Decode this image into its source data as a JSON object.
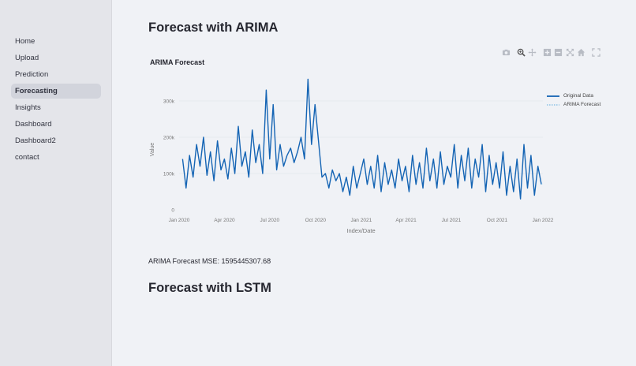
{
  "sidebar": {
    "items": [
      {
        "label": "Home",
        "active": false
      },
      {
        "label": "Upload",
        "active": false
      },
      {
        "label": "Prediction",
        "active": false
      },
      {
        "label": "Forecasting",
        "active": true
      },
      {
        "label": "Insights",
        "active": false
      },
      {
        "label": "Dashboard",
        "active": false
      },
      {
        "label": "Dashboard2",
        "active": false
      },
      {
        "label": "contact",
        "active": false
      }
    ]
  },
  "main": {
    "arima_heading": "Forecast with ARIMA",
    "mse_text": "ARIMA Forecast MSE: 1595445307.68",
    "lstm_heading": "Forecast with LSTM"
  },
  "toolbar": {
    "icons": [
      "camera-icon",
      "zoom-icon",
      "pan-icon",
      "zoom-in-icon",
      "zoom-out-icon",
      "autoscale-icon",
      "reset-axes-icon",
      "fullscreen-icon"
    ]
  },
  "colors": {
    "original": "#1464b4",
    "forecast": "#8ec3e6",
    "grid": "#e3e6ec"
  },
  "chart_data": {
    "type": "line",
    "title": "ARIMA Forecast",
    "xlabel": "Index/Date",
    "ylabel": "Value",
    "xlim": [
      "2020-01-01",
      "2022-01-01"
    ],
    "ylim": [
      0,
      350000
    ],
    "x_ticks": [
      "Jan 2020",
      "Apr 2020",
      "Jul 2020",
      "Oct 2020",
      "Jan 2021",
      "Apr 2021",
      "Jul 2021",
      "Oct 2021",
      "Jan 2022"
    ],
    "y_ticks": [
      "0",
      "100k",
      "200k",
      "300k"
    ],
    "y_tick_values": [
      0,
      100000,
      200000,
      300000
    ],
    "legend_position": "top-right",
    "series": [
      {
        "name": "Original Data",
        "style": "solid",
        "x": [
          "2020-01-08",
          "2020-01-15",
          "2020-01-22",
          "2020-01-29",
          "2020-02-05",
          "2020-02-12",
          "2020-02-19",
          "2020-02-26",
          "2020-03-04",
          "2020-03-11",
          "2020-03-18",
          "2020-03-25",
          "2020-04-01",
          "2020-04-08",
          "2020-04-15",
          "2020-04-22",
          "2020-04-29",
          "2020-05-06",
          "2020-05-13",
          "2020-05-20",
          "2020-05-27",
          "2020-06-03",
          "2020-06-10",
          "2020-06-17",
          "2020-06-24",
          "2020-07-01",
          "2020-07-08",
          "2020-07-15",
          "2020-07-22",
          "2020-07-29",
          "2020-08-05",
          "2020-08-12",
          "2020-08-19",
          "2020-08-26",
          "2020-09-02",
          "2020-09-09",
          "2020-09-16",
          "2020-09-23",
          "2020-09-30",
          "2020-10-07",
          "2020-10-14",
          "2020-10-21",
          "2020-10-28",
          "2020-11-04",
          "2020-11-11",
          "2020-11-18",
          "2020-11-25",
          "2020-12-02",
          "2020-12-09",
          "2020-12-16",
          "2020-12-23",
          "2020-12-30",
          "2021-01-06",
          "2021-01-13",
          "2021-01-20",
          "2021-01-27",
          "2021-02-03",
          "2021-02-10",
          "2021-02-17",
          "2021-02-24",
          "2021-03-03",
          "2021-03-10",
          "2021-03-17",
          "2021-03-24",
          "2021-03-31",
          "2021-04-07",
          "2021-04-14",
          "2021-04-21",
          "2021-04-28",
          "2021-05-05",
          "2021-05-12",
          "2021-05-19",
          "2021-05-26",
          "2021-06-02",
          "2021-06-09",
          "2021-06-16",
          "2021-06-23",
          "2021-06-30",
          "2021-07-07",
          "2021-07-14",
          "2021-07-21",
          "2021-07-28",
          "2021-08-04",
          "2021-08-11",
          "2021-08-18",
          "2021-08-25",
          "2021-09-01",
          "2021-09-08",
          "2021-09-15",
          "2021-09-22",
          "2021-09-29",
          "2021-10-06",
          "2021-10-13",
          "2021-10-20",
          "2021-10-27",
          "2021-11-03",
          "2021-11-10",
          "2021-11-17",
          "2021-11-24",
          "2021-12-01",
          "2021-12-08",
          "2021-12-15",
          "2021-12-22",
          "2021-12-29"
        ],
        "y": [
          140000,
          60000,
          150000,
          90000,
          180000,
          120000,
          200000,
          95000,
          160000,
          80000,
          190000,
          110000,
          140000,
          85000,
          170000,
          100000,
          230000,
          120000,
          160000,
          90000,
          220000,
          130000,
          180000,
          100000,
          330000,
          140000,
          290000,
          110000,
          180000,
          120000,
          150000,
          170000,
          130000,
          160000,
          200000,
          140000,
          360000,
          180000,
          290000,
          190000,
          90000,
          100000,
          60000,
          110000,
          80000,
          100000,
          50000,
          90000,
          40000,
          120000,
          60000,
          100000,
          140000,
          70000,
          120000,
          60000,
          150000,
          50000,
          130000,
          70000,
          110000,
          60000,
          140000,
          80000,
          120000,
          50000,
          150000,
          70000,
          130000,
          60000,
          170000,
          80000,
          140000,
          60000,
          160000,
          70000,
          120000,
          90000,
          180000,
          60000,
          150000,
          80000,
          170000,
          60000,
          140000,
          90000,
          180000,
          50000,
          150000,
          70000,
          130000,
          60000,
          160000,
          40000,
          120000,
          50000,
          140000,
          30000,
          180000,
          60000,
          150000,
          40000,
          120000,
          70000
        ]
      },
      {
        "name": "ARIMA Forecast",
        "style": "dotted",
        "x": [
          "2021-12-29",
          "2022-01-01"
        ],
        "y": [
          70000,
          75000
        ]
      }
    ]
  }
}
